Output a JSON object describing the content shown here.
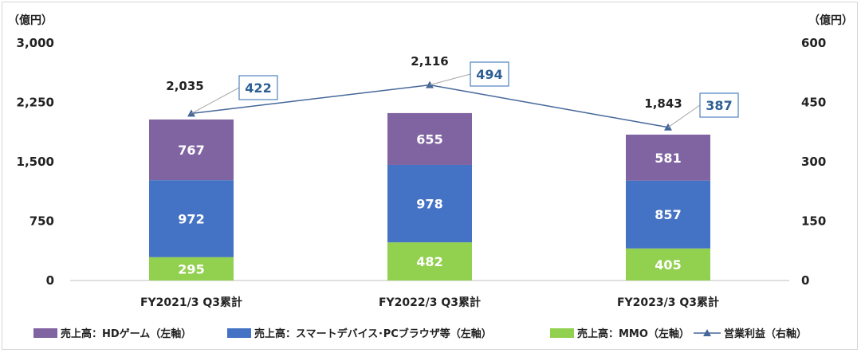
{
  "chart_data": {
    "type": "bar",
    "stacked": true,
    "categories": [
      "FY2021/3 Q3累計",
      "FY2022/3 Q3累計",
      "FY2023/3 Q3累計"
    ],
    "left_unit": "（億円）",
    "right_unit": "（億円）",
    "left_axis": {
      "min": 0,
      "max": 3000,
      "ticks": [
        "0",
        "750",
        "1,500",
        "2,250",
        "3,000"
      ]
    },
    "right_axis": {
      "min": 0,
      "max": 600,
      "ticks": [
        "0",
        "150",
        "300",
        "450",
        "600"
      ]
    },
    "series": [
      {
        "name": "売上高：MMO（左軸）",
        "axis": "left",
        "color": "#92d050",
        "values": [
          295,
          482,
          405
        ]
      },
      {
        "name": "売上高：スマートデバイス･PCブラウザ等（左軸）",
        "axis": "left",
        "color": "#4472c4",
        "values": [
          972,
          978,
          857
        ]
      },
      {
        "name": "売上高：HDゲーム（左軸）",
        "axis": "left",
        "color": "#8064a2",
        "values": [
          767,
          655,
          581
        ]
      }
    ],
    "totals": [
      "2,035",
      "2,116",
      "1,843"
    ],
    "line": {
      "name": "営業利益（右軸）",
      "axis": "right",
      "color": "#44679a",
      "values": [
        422,
        494,
        387
      ],
      "labels": [
        "422",
        "494",
        "387"
      ]
    },
    "legend_order": [
      {
        "name": "売上高：HDゲーム（左軸）",
        "kind": "rect",
        "color": "#8064a2"
      },
      {
        "name": "売上高：スマートデバイス･PCブラウザ等（左軸）",
        "kind": "rect",
        "color": "#4472c4"
      },
      {
        "name": "売上高：MMO（左軸）",
        "kind": "rect",
        "color": "#92d050"
      },
      {
        "name": "営業利益（右軸）",
        "kind": "line",
        "color": "#44679a"
      }
    ],
    "legend_position": "bottom",
    "grid": false
  }
}
